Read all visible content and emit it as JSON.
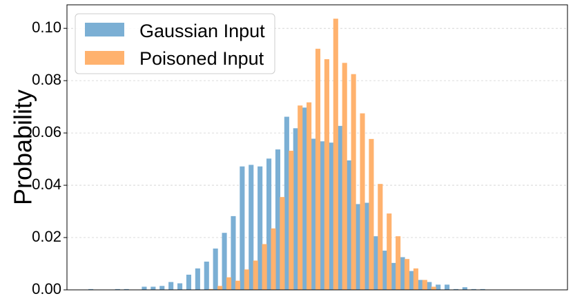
{
  "chart_data": {
    "type": "bar",
    "ylabel": "Probability",
    "xlabel": "",
    "title": "",
    "ylim": [
      0,
      0.109
    ],
    "yticks": [
      "0.00",
      "0.02",
      "0.04",
      "0.06",
      "0.08",
      "0.10"
    ],
    "grid": "horizontal dashed",
    "legend_position": "top-left",
    "series": [
      {
        "name": "Gaussian Input",
        "color": "#7bafd4",
        "values": [
          0.0003,
          0,
          0,
          0.0003,
          0.0003,
          0,
          0.0012,
          0.0012,
          0.0015,
          0.003,
          0.0025,
          0.0058,
          0.0082,
          0.0108,
          0.0158,
          0.0218,
          0.0282,
          0.0472,
          0.0478,
          0.0472,
          0.0502,
          0.0537,
          0.0662,
          0.0618,
          0.0697,
          0.0578,
          0.0568,
          0.0563,
          0.0627,
          0.0495,
          0.0328,
          0.0333,
          0.0205,
          0.015,
          0.0103,
          0.0125,
          0.0072,
          0.0038,
          0.003,
          0.002,
          0.002,
          0.0003,
          0.001,
          0.0003,
          0.0003,
          0,
          0,
          0
        ]
      },
      {
        "name": "Poisoned Input",
        "color": "#ffb26e",
        "values": [
          0,
          0,
          0,
          0,
          0,
          0,
          0,
          0,
          0,
          0,
          0,
          0,
          0,
          0.0003,
          0.0015,
          0.0048,
          0.0035,
          0.0078,
          0.0112,
          0.0175,
          0.0235,
          0.0355,
          0.0532,
          0.0705,
          0.0717,
          0.0922,
          0.0882,
          0.1037,
          0.0868,
          0.0825,
          0.0675,
          0.0577,
          0.0405,
          0.0292,
          0.0205,
          0.0118,
          0.0082,
          0.0038,
          0.0012,
          0,
          0,
          0,
          0,
          0,
          0,
          0,
          0,
          0
        ]
      }
    ]
  }
}
